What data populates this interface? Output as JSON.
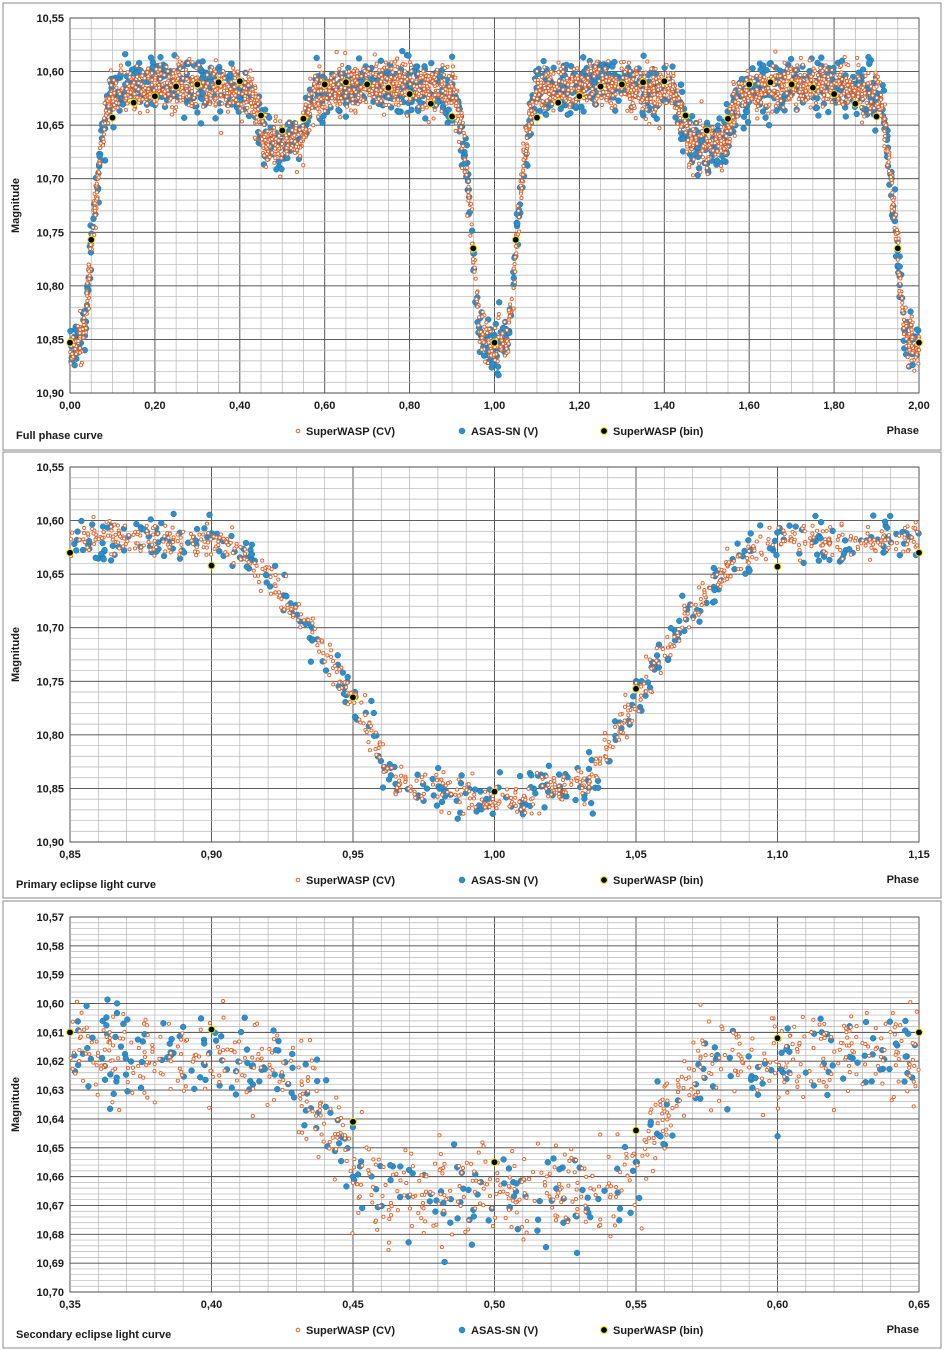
{
  "colors": {
    "superwasp": "#e0622a",
    "asassn": "#2e8fcd",
    "bin": "#000000",
    "bin_outline": "#e5e500",
    "grid": "#b5b5b5",
    "grid_major": "#4d4d4d",
    "border": "#8a8a8a"
  },
  "chart_data": [
    {
      "type": "scatter",
      "title": "Full phase curve",
      "xlabel": "Phase",
      "ylabel": "Magnitude",
      "xlim": [
        0,
        2
      ],
      "ylim": [
        10.55,
        10.9
      ],
      "y_reversed": true,
      "x_ticks": [
        "0,00",
        "0,20",
        "0,40",
        "0,60",
        "0,80",
        "1,00",
        "1,20",
        "1,40",
        "1,60",
        "1,80",
        "2,00"
      ],
      "y_ticks": [
        "10,55",
        "10,60",
        "10,65",
        "10,70",
        "10,75",
        "10,80",
        "10,85",
        "10,90"
      ],
      "legend": [
        "SuperWASP (CV)",
        "ASAS-SN (V)",
        "SuperWASP (bin)"
      ],
      "series": [
        {
          "name": "SuperWASP (bin)",
          "x": [
            0.0,
            0.05,
            0.1,
            0.15,
            0.2,
            0.25,
            0.3,
            0.35,
            0.4,
            0.45,
            0.5,
            0.55,
            0.6,
            0.65,
            0.7,
            0.75,
            0.8,
            0.85,
            0.9,
            0.95,
            1.0,
            1.05,
            1.1,
            1.15,
            1.2,
            1.25,
            1.3,
            1.35,
            1.4,
            1.45,
            1.5,
            1.55,
            1.6,
            1.65,
            1.7,
            1.75,
            1.8,
            1.85,
            1.9,
            1.95,
            2.0
          ],
          "y": [
            10.853,
            10.757,
            10.643,
            10.629,
            10.623,
            10.614,
            10.612,
            10.61,
            10.609,
            10.641,
            10.655,
            10.644,
            10.612,
            10.61,
            10.612,
            10.615,
            10.621,
            10.63,
            10.642,
            10.765,
            10.853,
            10.757,
            10.643,
            10.629,
            10.623,
            10.614,
            10.612,
            10.61,
            10.609,
            10.641,
            10.655,
            10.644,
            10.612,
            10.61,
            10.612,
            10.615,
            10.621,
            10.63,
            10.642,
            10.765,
            10.853
          ]
        }
      ]
    },
    {
      "type": "scatter",
      "title": "Primary eclipse light curve",
      "xlabel": "Phase",
      "ylabel": "Magnitude",
      "xlim": [
        0.85,
        1.15
      ],
      "ylim": [
        10.55,
        10.9
      ],
      "y_reversed": true,
      "x_ticks": [
        "0,85",
        "0,90",
        "0,95",
        "1,00",
        "1,05",
        "1,10",
        "1,15"
      ],
      "y_ticks": [
        "10,55",
        "10,60",
        "10,65",
        "10,70",
        "10,75",
        "10,80",
        "10,85",
        "10,90"
      ],
      "legend": [
        "SuperWASP (CV)",
        "ASAS-SN (V)",
        "SuperWASP (bin)"
      ],
      "series": [
        {
          "name": "SuperWASP (bin)",
          "x": [
            0.85,
            0.9,
            0.95,
            1.0,
            1.05,
            1.1,
            1.15
          ],
          "y": [
            10.63,
            10.642,
            10.765,
            10.853,
            10.757,
            10.643,
            10.63
          ]
        }
      ]
    },
    {
      "type": "scatter",
      "title": "Secondary eclipse light curve",
      "xlabel": "Phase",
      "ylabel": "Magnitude",
      "xlim": [
        0.35,
        0.65
      ],
      "ylim": [
        10.57,
        10.7
      ],
      "y_reversed": true,
      "x_ticks": [
        "0,35",
        "0,40",
        "0,45",
        "0,50",
        "0,55",
        "0,60",
        "0,65"
      ],
      "y_ticks": [
        "10,57",
        "10,58",
        "10,59",
        "10,60",
        "10,61",
        "10,62",
        "10,63",
        "10,64",
        "10,65",
        "10,66",
        "10,67",
        "10,68",
        "10,69",
        "10,70"
      ],
      "legend": [
        "SuperWASP (CV)",
        "ASAS-SN (V)",
        "SuperWASP (bin)"
      ],
      "series": [
        {
          "name": "SuperWASP (bin)",
          "x": [
            0.35,
            0.4,
            0.45,
            0.5,
            0.55,
            0.6,
            0.65
          ],
          "y": [
            10.61,
            10.609,
            10.641,
            10.655,
            10.644,
            10.612,
            10.61
          ]
        }
      ]
    }
  ]
}
